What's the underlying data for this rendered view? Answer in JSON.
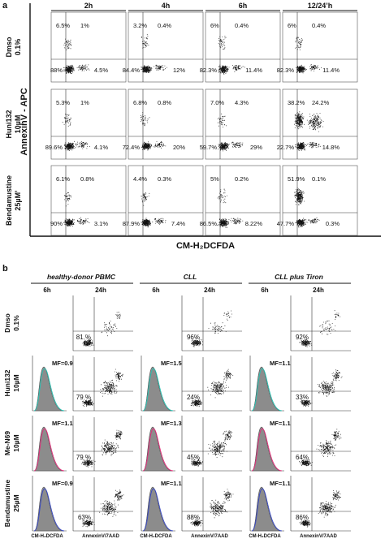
{
  "panel_a": {
    "letter": "a",
    "time_labels": [
      "2h",
      "4h",
      "6h",
      "12/24’h"
    ],
    "y_axis_label": "AnnexinV - APC",
    "x_axis_label": "CM-H₂DCFDA",
    "rows": [
      {
        "label_line1": "Dmso",
        "label_line2": "0.1%",
        "cells": [
          {
            "ul": "6.5%",
            "ur": "1%",
            "ll": "88%",
            "lr": "4.5%"
          },
          {
            "ul": "3.2%",
            "ur": "0.4%",
            "ll": "84.4%",
            "lr": "12%"
          },
          {
            "ul": "6%",
            "ur": "0.4%",
            "ll": "82.3%",
            "lr": "11.4%"
          },
          {
            "ul": "6%",
            "ur": "0.4%",
            "ll": "82.3%",
            "lr": "11.4%"
          }
        ]
      },
      {
        "label_line1": "Huni132",
        "label_line2": "10µM",
        "cells": [
          {
            "ul": "5.3%",
            "ur": "1%",
            "ll": "89.6%",
            "lr": "4.1%"
          },
          {
            "ul": "6.8%",
            "ur": "0.8%",
            "ll": "72.4%",
            "lr": "20%"
          },
          {
            "ul": "7.0%",
            "ur": "4.3%",
            "ll": "59.7%",
            "lr": "29%"
          },
          {
            "ul": "38.2%",
            "ur": "24.2%",
            "ll": "22.7%",
            "lr": "14.8%"
          }
        ]
      },
      {
        "label_line1": "Bendamustine",
        "label_line2": "25µM’",
        "cells": [
          {
            "ul": "6.1%",
            "ur": "0.8%",
            "ll": "90%",
            "lr": "3.1%"
          },
          {
            "ul": "4.4%",
            "ur": "0.3%",
            "ll": "87.9%",
            "lr": "7.4%"
          },
          {
            "ul": "5%",
            "ur": "0.2%",
            "ll": "86.5%",
            "lr": "8.22%"
          },
          {
            "ul": "51.9%",
            "ur": "0.1%",
            "ll": "47.7%",
            "lr": "0.3%"
          }
        ]
      }
    ]
  },
  "panel_b": {
    "letter": "b",
    "groups": [
      {
        "title": "healthy-donor PBMC",
        "t1": "6h",
        "t2": "24h"
      },
      {
        "title": "CLL",
        "t1": "6h",
        "t2": "24h"
      },
      {
        "title": "CLL plus Tiron",
        "t1": "6h",
        "t2": "24h"
      }
    ],
    "rows": [
      {
        "label_line1": "Dmso",
        "label_line2": "0.1%",
        "mf": [
          "",
          "",
          ""
        ],
        "pct": [
          "81 %",
          "96%",
          "92%"
        ]
      },
      {
        "label_line1": "Huni132",
        "label_line2": "10µM",
        "mf": [
          "MF=0.9",
          "MF=1.5",
          "MF=1.1"
        ],
        "pct": [
          "79 %",
          "24%",
          "33%"
        ]
      },
      {
        "label_line1": "Me-N69",
        "label_line2": "10µM",
        "mf": [
          "MF=1.1",
          "MF=1.3",
          "MF=1.1"
        ],
        "pct": [
          "79 %",
          "45%",
          "64%"
        ]
      },
      {
        "label_line1": "Bendamustine",
        "label_line2": "25µM",
        "mf": [
          "MF=0.9",
          "MF=1.1",
          "MF=1.1"
        ],
        "pct": [
          "63%",
          "88%",
          "86%"
        ]
      }
    ],
    "x_labels": [
      "CM-H₂DCFDA",
      "AnnexinV/7AAD"
    ],
    "colors": {
      "dmso_hist": "#2bbfb0",
      "huni132_hist": "#2bbfb0",
      "men69_hist": "#e0307a",
      "benda_hist": "#3a4ac0",
      "hist_fill": "#8c8c8c",
      "dots": "#111111"
    }
  }
}
